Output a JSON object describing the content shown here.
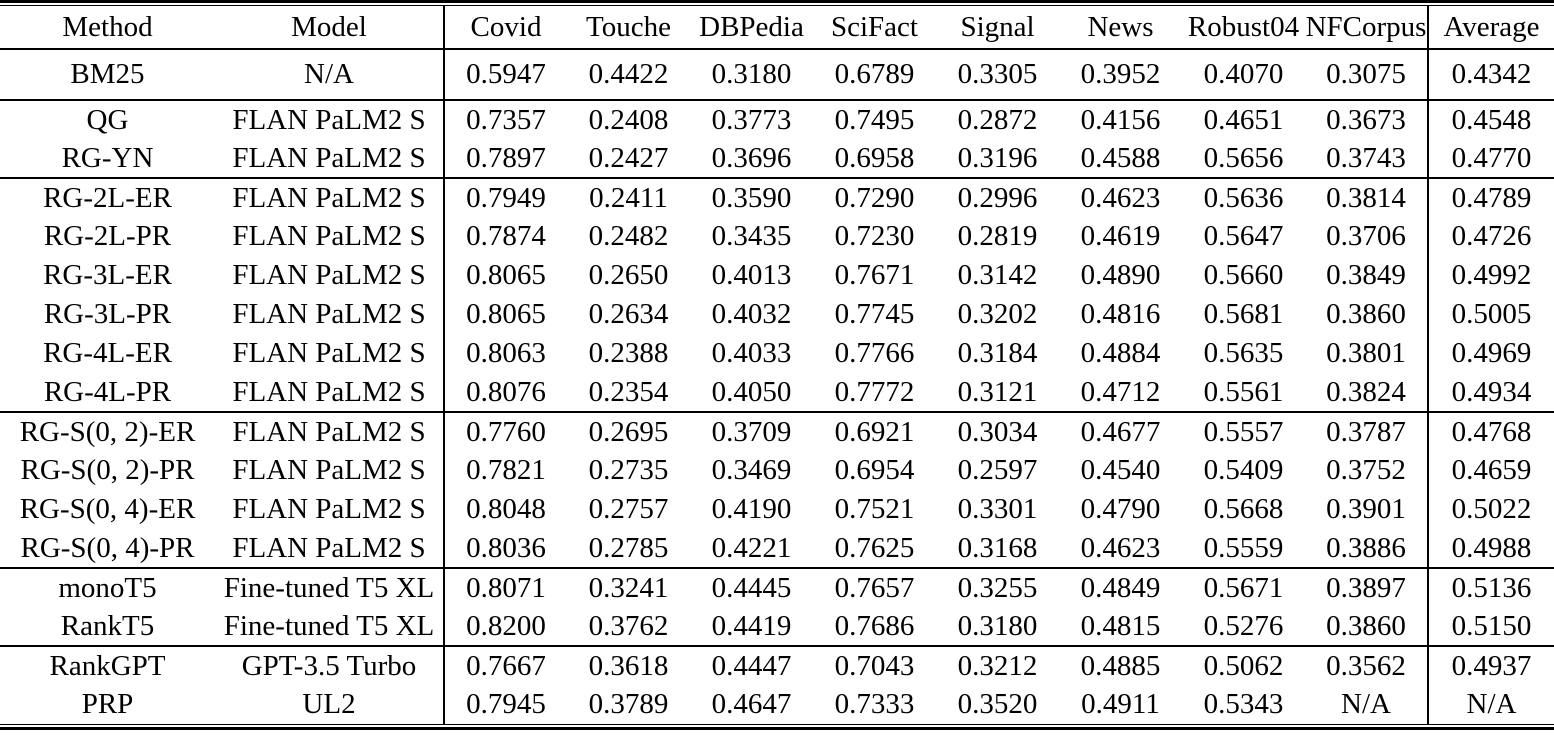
{
  "table": {
    "column_headers": [
      "Method",
      "Model",
      "Covid",
      "Touche",
      "DBPedia",
      "SciFact",
      "Signal",
      "News",
      "Robust04",
      "NFCorpus",
      "Average"
    ],
    "groups": [
      {
        "name": "baseline",
        "rows": [
          {
            "method": "BM25",
            "model": "N/A",
            "values": [
              "0.5947",
              "0.4422",
              "0.3180",
              "0.6789",
              "0.3305",
              "0.3952",
              "0.4070",
              "0.3075",
              "0.4342"
            ]
          }
        ]
      },
      {
        "name": "qg-rg",
        "rows": [
          {
            "method": "QG",
            "model": "FLAN PaLM2 S",
            "values": [
              "0.7357",
              "0.2408",
              "0.3773",
              "0.7495",
              "0.2872",
              "0.4156",
              "0.4651",
              "0.3673",
              "0.4548"
            ]
          },
          {
            "method": "RG-YN",
            "model": "FLAN PaLM2 S",
            "values": [
              "0.7897",
              "0.2427",
              "0.3696",
              "0.6958",
              "0.3196",
              "0.4588",
              "0.5656",
              "0.3743",
              "0.4770"
            ]
          }
        ]
      },
      {
        "name": "rg-nl",
        "rows": [
          {
            "method": "RG-2L-ER",
            "model": "FLAN PaLM2 S",
            "values": [
              "0.7949",
              "0.2411",
              "0.3590",
              "0.7290",
              "0.2996",
              "0.4623",
              "0.5636",
              "0.3814",
              "0.4789"
            ]
          },
          {
            "method": "RG-2L-PR",
            "model": "FLAN PaLM2 S",
            "values": [
              "0.7874",
              "0.2482",
              "0.3435",
              "0.7230",
              "0.2819",
              "0.4619",
              "0.5647",
              "0.3706",
              "0.4726"
            ]
          },
          {
            "method": "RG-3L-ER",
            "model": "FLAN PaLM2 S",
            "values": [
              "0.8065",
              "0.2650",
              "0.4013",
              "0.7671",
              "0.3142",
              "0.4890",
              "0.5660",
              "0.3849",
              "0.4992"
            ]
          },
          {
            "method": "RG-3L-PR",
            "model": "FLAN PaLM2 S",
            "values": [
              "0.8065",
              "0.2634",
              "0.4032",
              "0.7745",
              "0.3202",
              "0.4816",
              "0.5681",
              "0.3860",
              "0.5005"
            ]
          },
          {
            "method": "RG-4L-ER",
            "model": "FLAN PaLM2 S",
            "values": [
              "0.8063",
              "0.2388",
              "0.4033",
              "0.7766",
              "0.3184",
              "0.4884",
              "0.5635",
              "0.3801",
              "0.4969"
            ]
          },
          {
            "method": "RG-4L-PR",
            "model": "FLAN PaLM2 S",
            "values": [
              "0.8076",
              "0.2354",
              "0.4050",
              "0.7772",
              "0.3121",
              "0.4712",
              "0.5561",
              "0.3824",
              "0.4934"
            ]
          }
        ]
      },
      {
        "name": "rg-s",
        "rows": [
          {
            "method": "RG-S(0, 2)-ER",
            "model": "FLAN PaLM2 S",
            "values": [
              "0.7760",
              "0.2695",
              "0.3709",
              "0.6921",
              "0.3034",
              "0.4677",
              "0.5557",
              "0.3787",
              "0.4768"
            ]
          },
          {
            "method": "RG-S(0, 2)-PR",
            "model": "FLAN PaLM2 S",
            "values": [
              "0.7821",
              "0.2735",
              "0.3469",
              "0.6954",
              "0.2597",
              "0.4540",
              "0.5409",
              "0.3752",
              "0.4659"
            ]
          },
          {
            "method": "RG-S(0, 4)-ER",
            "model": "FLAN PaLM2 S",
            "values": [
              "0.8048",
              "0.2757",
              "0.4190",
              "0.7521",
              "0.3301",
              "0.4790",
              "0.5668",
              "0.3901",
              "0.5022"
            ]
          },
          {
            "method": "RG-S(0, 4)-PR",
            "model": "FLAN PaLM2 S",
            "values": [
              "0.8036",
              "0.2785",
              "0.4221",
              "0.7625",
              "0.3168",
              "0.4623",
              "0.5559",
              "0.3886",
              "0.4988"
            ]
          }
        ]
      },
      {
        "name": "t5",
        "rows": [
          {
            "method": "monoT5",
            "model": "Fine-tuned T5 XL",
            "values": [
              "0.8071",
              "0.3241",
              "0.4445",
              "0.7657",
              "0.3255",
              "0.4849",
              "0.5671",
              "0.3897",
              "0.5136"
            ]
          },
          {
            "method": "RankT5",
            "model": "Fine-tuned T5 XL",
            "values": [
              "0.8200",
              "0.3762",
              "0.4419",
              "0.7686",
              "0.3180",
              "0.4815",
              "0.5276",
              "0.3860",
              "0.5150"
            ]
          }
        ]
      },
      {
        "name": "llm-rankers",
        "rows": [
          {
            "method": "RankGPT",
            "model": "GPT-3.5 Turbo",
            "values": [
              "0.7667",
              "0.3618",
              "0.4447",
              "0.7043",
              "0.3212",
              "0.4885",
              "0.5062",
              "0.3562",
              "0.4937"
            ]
          },
          {
            "method": "PRP",
            "model": "UL2",
            "values": [
              "0.7945",
              "0.3789",
              "0.4647",
              "0.7333",
              "0.3520",
              "0.4911",
              "0.5343",
              "N/A",
              "N/A"
            ]
          }
        ]
      }
    ]
  }
}
